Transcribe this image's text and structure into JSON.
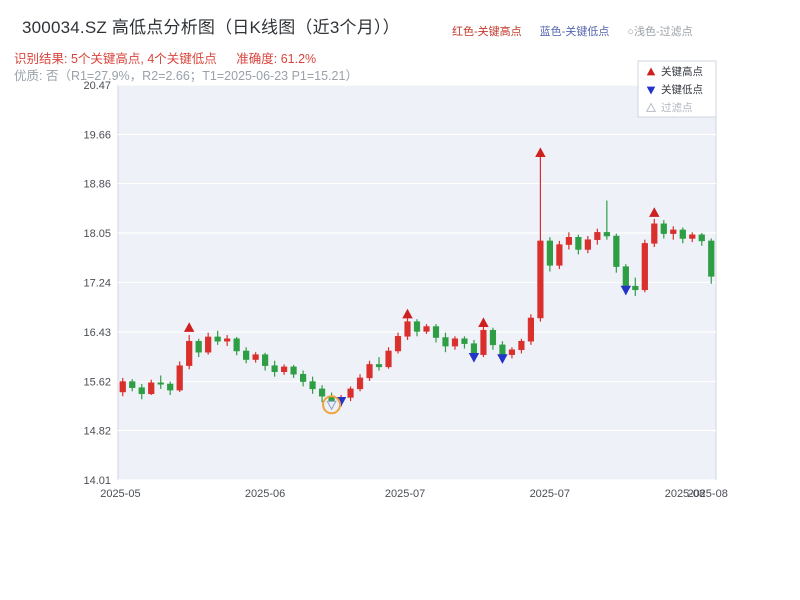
{
  "header": {
    "title": "300034.SZ 高低点分析图（日K线图（近3个月））",
    "legend_top": [
      {
        "label": "红色-关键高点",
        "color": "#c0392b"
      },
      {
        "label": "蓝色-关键低点",
        "color": "#5566b0"
      },
      {
        "label": "○浅色-过滤点",
        "color": "#9aa0a6"
      }
    ],
    "result": {
      "text": "识别结果: 5个关键高点, 4个关键低点",
      "accuracy": "准确度: 61.2%"
    },
    "quality_line": "优质: 否（R1=27.9%，R2=2.66；T1=2025-06-23 P1=15.21）"
  },
  "chart_data": {
    "type": "candlestick",
    "title": "300034.SZ 日K线 近3个月",
    "ylim": [
      14.01,
      20.47
    ],
    "y_ticks": [
      "20.47",
      "19.66",
      "18.86",
      "18.05",
      "17.24",
      "16.43",
      "15.62",
      "14.82",
      "14.01"
    ],
    "x_ticks": [
      {
        "pos": 0.004,
        "label": "2025-05"
      },
      {
        "pos": 0.246,
        "label": "2025-06"
      },
      {
        "pos": 0.48,
        "label": "2025-07"
      },
      {
        "pos": 0.722,
        "label": "2025-07"
      },
      {
        "pos": 0.948,
        "label": "2025-08"
      },
      {
        "pos": 0.986,
        "label": "2025-08"
      }
    ],
    "up_color": "#d9302e",
    "down_color": "#2e9e44",
    "key_high_color": "#cf2020",
    "key_low_color": "#2433c8",
    "filtered_stroke_color": "#8fa3cc",
    "filtered_fill_color": "#e8edf8",
    "highlight_circle_color": "#f0a340",
    "plot_bg_color": "#eef1f7",
    "legend": [
      {
        "marker": "up-triangle",
        "label": "关键高点"
      },
      {
        "marker": "down-triangle",
        "label": "关键低点"
      },
      {
        "marker": "open-triangle",
        "label": "过滤点"
      }
    ],
    "candles": [
      {
        "d": "2025-05-06",
        "o": 15.45,
        "h": 15.68,
        "l": 15.38,
        "c": 15.62
      },
      {
        "d": "2025-05-07",
        "o": 15.62,
        "h": 15.66,
        "l": 15.46,
        "c": 15.52
      },
      {
        "d": "2025-05-08",
        "o": 15.52,
        "h": 15.58,
        "l": 15.33,
        "c": 15.42
      },
      {
        "d": "2025-05-09",
        "o": 15.42,
        "h": 15.65,
        "l": 15.4,
        "c": 15.6
      },
      {
        "d": "2025-05-12",
        "o": 15.6,
        "h": 15.72,
        "l": 15.5,
        "c": 15.58
      },
      {
        "d": "2025-05-13",
        "o": 15.58,
        "h": 15.62,
        "l": 15.4,
        "c": 15.48
      },
      {
        "d": "2025-05-14",
        "o": 15.48,
        "h": 15.95,
        "l": 15.45,
        "c": 15.88
      },
      {
        "d": "2025-05-15",
        "o": 15.88,
        "h": 16.38,
        "l": 15.82,
        "c": 16.28
      },
      {
        "d": "2025-05-16",
        "o": 16.28,
        "h": 16.32,
        "l": 16.02,
        "c": 16.1
      },
      {
        "d": "2025-05-19",
        "o": 16.1,
        "h": 16.42,
        "l": 16.06,
        "c": 16.35
      },
      {
        "d": "2025-05-20",
        "o": 16.35,
        "h": 16.45,
        "l": 16.22,
        "c": 16.28
      },
      {
        "d": "2025-05-21",
        "o": 16.28,
        "h": 16.38,
        "l": 16.2,
        "c": 16.32
      },
      {
        "d": "2025-05-22",
        "o": 16.32,
        "h": 16.35,
        "l": 16.05,
        "c": 16.12
      },
      {
        "d": "2025-05-23",
        "o": 16.12,
        "h": 16.18,
        "l": 15.92,
        "c": 15.98
      },
      {
        "d": "2025-05-26",
        "o": 15.98,
        "h": 16.1,
        "l": 15.93,
        "c": 16.06
      },
      {
        "d": "2025-05-27",
        "o": 16.06,
        "h": 16.09,
        "l": 15.8,
        "c": 15.88
      },
      {
        "d": "2025-05-28",
        "o": 15.88,
        "h": 15.96,
        "l": 15.7,
        "c": 15.78
      },
      {
        "d": "2025-05-29",
        "o": 15.78,
        "h": 15.9,
        "l": 15.73,
        "c": 15.86
      },
      {
        "d": "2025-05-30",
        "o": 15.86,
        "h": 15.89,
        "l": 15.68,
        "c": 15.74
      },
      {
        "d": "2025-06-03",
        "o": 15.74,
        "h": 15.8,
        "l": 15.54,
        "c": 15.62
      },
      {
        "d": "2025-06-04",
        "o": 15.62,
        "h": 15.7,
        "l": 15.42,
        "c": 15.5
      },
      {
        "d": "2025-06-05",
        "o": 15.5,
        "h": 15.56,
        "l": 15.28,
        "c": 15.38
      },
      {
        "d": "2025-06-06",
        "o": 15.38,
        "h": 15.44,
        "l": 15.21,
        "c": 15.3
      },
      {
        "d": "2025-06-09",
        "o": 15.3,
        "h": 15.4,
        "l": 15.21,
        "c": 15.36
      },
      {
        "d": "2025-06-10",
        "o": 15.36,
        "h": 15.54,
        "l": 15.3,
        "c": 15.5
      },
      {
        "d": "2025-06-11",
        "o": 15.5,
        "h": 15.74,
        "l": 15.46,
        "c": 15.68
      },
      {
        "d": "2025-06-12",
        "o": 15.68,
        "h": 15.96,
        "l": 15.63,
        "c": 15.9
      },
      {
        "d": "2025-06-13",
        "o": 15.9,
        "h": 16.02,
        "l": 15.8,
        "c": 15.86
      },
      {
        "d": "2025-06-16",
        "o": 15.86,
        "h": 16.18,
        "l": 15.83,
        "c": 16.12
      },
      {
        "d": "2025-06-17",
        "o": 16.12,
        "h": 16.42,
        "l": 16.08,
        "c": 16.36
      },
      {
        "d": "2025-06-18",
        "o": 16.36,
        "h": 16.68,
        "l": 16.3,
        "c": 16.6
      },
      {
        "d": "2025-06-19",
        "o": 16.6,
        "h": 16.64,
        "l": 16.36,
        "c": 16.44
      },
      {
        "d": "2025-06-20",
        "o": 16.44,
        "h": 16.56,
        "l": 16.4,
        "c": 16.52
      },
      {
        "d": "2025-06-23",
        "o": 16.52,
        "h": 16.56,
        "l": 16.26,
        "c": 16.34
      },
      {
        "d": "2025-06-24",
        "o": 16.34,
        "h": 16.42,
        "l": 16.1,
        "c": 16.2
      },
      {
        "d": "2025-06-25",
        "o": 16.2,
        "h": 16.36,
        "l": 16.14,
        "c": 16.32
      },
      {
        "d": "2025-06-26",
        "o": 16.32,
        "h": 16.36,
        "l": 16.16,
        "c": 16.24
      },
      {
        "d": "2025-06-27",
        "o": 16.24,
        "h": 16.3,
        "l": 15.96,
        "c": 16.06
      },
      {
        "d": "2025-06-30",
        "o": 16.06,
        "h": 16.54,
        "l": 16.02,
        "c": 16.46
      },
      {
        "d": "2025-07-01",
        "o": 16.46,
        "h": 16.5,
        "l": 16.14,
        "c": 16.22
      },
      {
        "d": "2025-07-02",
        "o": 16.22,
        "h": 16.28,
        "l": 15.98,
        "c": 16.06
      },
      {
        "d": "2025-07-03",
        "o": 16.06,
        "h": 16.18,
        "l": 16.0,
        "c": 16.14
      },
      {
        "d": "2025-07-04",
        "o": 16.14,
        "h": 16.32,
        "l": 16.08,
        "c": 16.28
      },
      {
        "d": "2025-07-07",
        "o": 16.28,
        "h": 16.72,
        "l": 16.22,
        "c": 16.66
      },
      {
        "d": "2025-07-08",
        "o": 16.66,
        "h": 19.3,
        "l": 16.6,
        "c": 17.92
      },
      {
        "d": "2025-07-09",
        "o": 17.92,
        "h": 17.98,
        "l": 17.42,
        "c": 17.52
      },
      {
        "d": "2025-07-10",
        "o": 17.52,
        "h": 17.92,
        "l": 17.46,
        "c": 17.86
      },
      {
        "d": "2025-07-11",
        "o": 17.86,
        "h": 18.06,
        "l": 17.78,
        "c": 17.98
      },
      {
        "d": "2025-07-14",
        "o": 17.98,
        "h": 18.02,
        "l": 17.7,
        "c": 17.78
      },
      {
        "d": "2025-07-15",
        "o": 17.78,
        "h": 18.0,
        "l": 17.72,
        "c": 17.94
      },
      {
        "d": "2025-07-16",
        "o": 17.94,
        "h": 18.12,
        "l": 17.86,
        "c": 18.06
      },
      {
        "d": "2025-07-17",
        "o": 18.06,
        "h": 18.58,
        "l": 17.94,
        "c": 18.0
      },
      {
        "d": "2025-07-18",
        "o": 18.0,
        "h": 18.04,
        "l": 17.4,
        "c": 17.5
      },
      {
        "d": "2025-07-21",
        "o": 17.5,
        "h": 17.54,
        "l": 17.04,
        "c": 17.18
      },
      {
        "d": "2025-07-22",
        "o": 17.18,
        "h": 17.32,
        "l": 17.02,
        "c": 17.12
      },
      {
        "d": "2025-07-23",
        "o": 17.12,
        "h": 17.94,
        "l": 17.08,
        "c": 17.88
      },
      {
        "d": "2025-07-24",
        "o": 17.88,
        "h": 18.28,
        "l": 17.82,
        "c": 18.2
      },
      {
        "d": "2025-07-25",
        "o": 18.2,
        "h": 18.26,
        "l": 17.96,
        "c": 18.04
      },
      {
        "d": "2025-07-28",
        "o": 18.04,
        "h": 18.16,
        "l": 17.94,
        "c": 18.1
      },
      {
        "d": "2025-07-29",
        "o": 18.1,
        "h": 18.14,
        "l": 17.88,
        "c": 17.96
      },
      {
        "d": "2025-07-30",
        "o": 17.96,
        "h": 18.06,
        "l": 17.9,
        "c": 18.02
      },
      {
        "d": "2025-07-31",
        "o": 18.02,
        "h": 18.05,
        "l": 17.84,
        "c": 17.92
      },
      {
        "d": "2025-08-01",
        "o": 17.92,
        "h": 17.96,
        "l": 17.22,
        "c": 17.34
      }
    ],
    "key_highs": [
      {
        "index": 7,
        "price": 16.5
      },
      {
        "index": 30,
        "price": 16.72
      },
      {
        "index": 38,
        "price": 16.58
      },
      {
        "index": 44,
        "price": 19.36
      },
      {
        "index": 56,
        "price": 18.38
      }
    ],
    "key_lows": [
      {
        "index": 23,
        "price": 15.3
      },
      {
        "index": 37,
        "price": 16.02
      },
      {
        "index": 40,
        "price": 16.0
      },
      {
        "index": 53,
        "price": 17.12
      }
    ],
    "filtered_points": [
      {
        "index": 22,
        "price": 15.24
      }
    ]
  }
}
